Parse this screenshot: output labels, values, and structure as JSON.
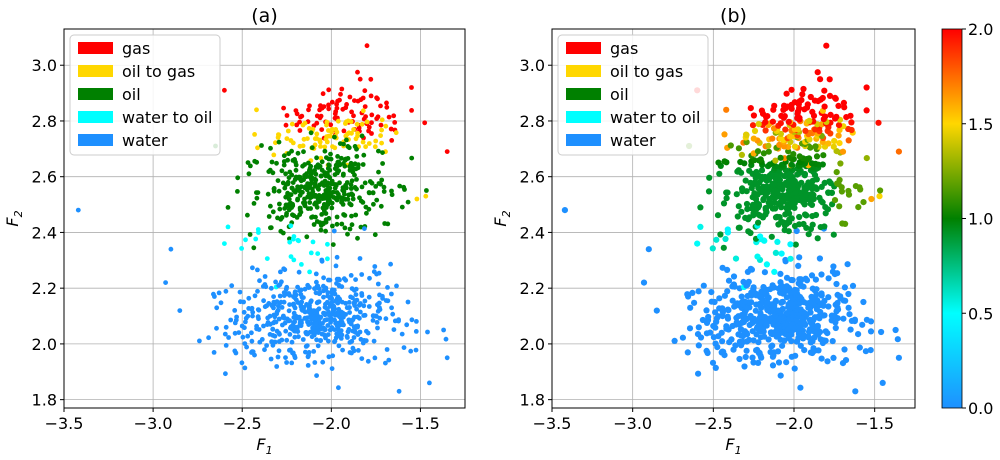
{
  "chart_data": [
    {
      "type": "scatter",
      "title": "(a)",
      "xlabel": "F",
      "xlabel_sub": "1",
      "ylabel": "F",
      "ylabel_sub": "2",
      "xlim": [
        -3.5,
        -1.25
      ],
      "ylim": [
        1.77,
        3.13
      ],
      "xticks": [
        -3.5,
        -3.0,
        -2.5,
        -2.0,
        -1.5
      ],
      "xtick_labels": [
        "−3.5",
        "−3.0",
        "−2.5",
        "−2.0",
        "−1.5"
      ],
      "yticks": [
        1.8,
        2.0,
        2.2,
        2.4,
        2.6,
        2.8,
        3.0
      ],
      "ytick_labels": [
        "1.8",
        "2.0",
        "2.2",
        "2.4",
        "2.6",
        "2.8",
        "3.0"
      ],
      "grid": true,
      "legend_position": "top-left",
      "series": [
        {
          "name": "gas",
          "color": "#ff0000",
          "center": [
            -1.92,
            2.83
          ],
          "spread": [
            0.16,
            0.05
          ],
          "count": 95,
          "outliers": [
            [
              -1.35,
              2.69
            ],
            [
              -2.6,
              2.91
            ],
            [
              -1.8,
              3.07
            ],
            [
              -1.55,
              2.92
            ]
          ]
        },
        {
          "name": "oil to gas",
          "color": "#ffd700",
          "center": [
            -2.0,
            2.74
          ],
          "spread": [
            0.2,
            0.04
          ],
          "count": 85,
          "outliers": [
            [
              -1.47,
              2.53
            ],
            [
              -1.52,
              2.52
            ],
            [
              -2.42,
              2.84
            ]
          ]
        },
        {
          "name": "oil",
          "color": "#008000",
          "center": [
            -2.06,
            2.56
          ],
          "spread": [
            0.17,
            0.08
          ],
          "count": 400,
          "outliers": [
            [
              -2.65,
              2.71
            ],
            [
              -2.58,
              2.49
            ]
          ]
        },
        {
          "name": "water to oil",
          "color": "#00ffff",
          "center": [
            -2.25,
            2.35
          ],
          "spread": [
            0.12,
            0.05
          ],
          "count": 22,
          "outliers": [
            [
              -2.58,
              2.42
            ],
            [
              -2.6,
              2.36
            ]
          ]
        },
        {
          "name": "water",
          "color": "#1e90ff",
          "center": [
            -2.1,
            2.1
          ],
          "spread": [
            0.24,
            0.08
          ],
          "count": 560,
          "outliers": [
            [
              -3.42,
              2.48
            ],
            [
              -2.9,
              2.34
            ],
            [
              -2.93,
              2.22
            ],
            [
              -1.37,
              2.05
            ],
            [
              -1.35,
              1.95
            ],
            [
              -1.45,
              1.86
            ],
            [
              -1.62,
              1.83
            ]
          ]
        }
      ]
    },
    {
      "type": "scatter",
      "title": "(b)",
      "xlabel": "F",
      "xlabel_sub": "1",
      "ylabel": "F",
      "ylabel_sub": "2",
      "xlim": [
        -3.5,
        -1.25
      ],
      "ylim": [
        1.77,
        3.13
      ],
      "xticks": [
        -3.5,
        -3.0,
        -2.5,
        -2.0,
        -1.5
      ],
      "xtick_labels": [
        "−3.5",
        "−3.0",
        "−2.5",
        "−2.0",
        "−1.5"
      ],
      "yticks": [
        1.8,
        2.0,
        2.2,
        2.4,
        2.6,
        2.8,
        3.0
      ],
      "ytick_labels": [
        "1.8",
        "2.0",
        "2.2",
        "2.4",
        "2.6",
        "2.8",
        "3.0"
      ],
      "grid": true,
      "legend_position": "top-left",
      "color_mode": "continuous",
      "series": [
        {
          "name": "gas",
          "color": "#ff0000"
        },
        {
          "name": "oil to gas",
          "color": "#ffd700"
        },
        {
          "name": "oil",
          "color": "#008000"
        },
        {
          "name": "water to oil",
          "color": "#00ffff"
        },
        {
          "name": "water",
          "color": "#1e90ff"
        }
      ],
      "colorbar": {
        "range": [
          0.0,
          2.0
        ],
        "ticks": [
          0.0,
          0.5,
          1.0,
          1.5,
          2.0
        ],
        "tick_labels": [
          "0.0",
          "0.5",
          "1.0",
          "1.5",
          "2.0"
        ],
        "stops": [
          {
            "value": 0.0,
            "color": "#1e90ff"
          },
          {
            "value": 0.5,
            "color": "#00ffff"
          },
          {
            "value": 1.0,
            "color": "#008000"
          },
          {
            "value": 1.5,
            "color": "#ffd700"
          },
          {
            "value": 2.0,
            "color": "#ff0000"
          }
        ]
      }
    }
  ]
}
